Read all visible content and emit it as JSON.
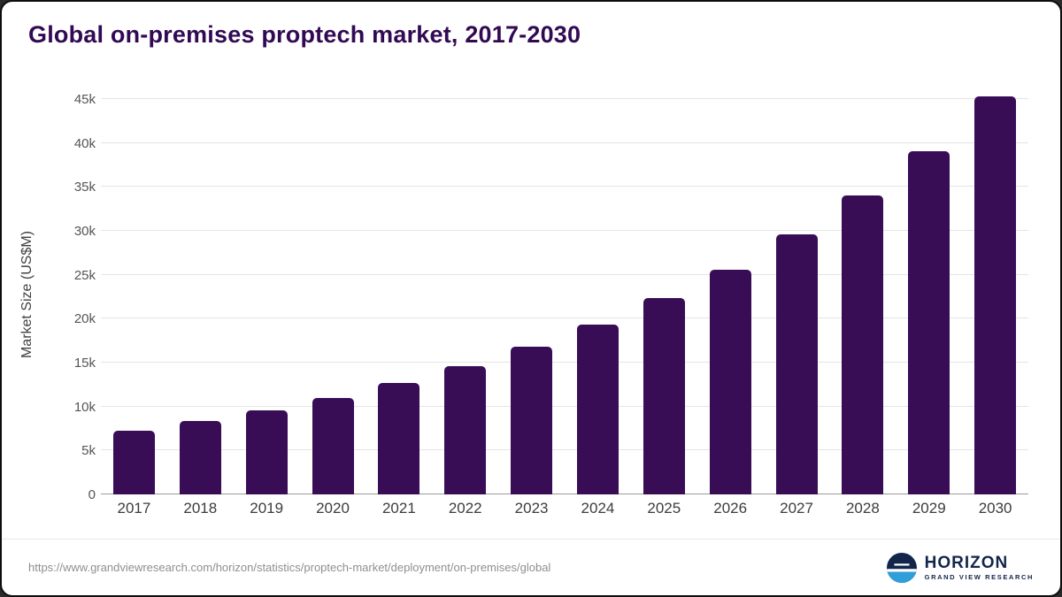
{
  "page": {
    "title": "Global on-premises proptech market, 2017-2030",
    "footer": {
      "source_url": "https://www.grandviewresearch.com/horizon/statistics/proptech-market/deployment/on-premises/global",
      "brand_name": "HORIZON",
      "brand_subtitle": "GRAND VIEW RESEARCH"
    }
  },
  "chart_data": {
    "type": "bar",
    "title": "Global on-premises proptech market, 2017-2030",
    "xlabel": "",
    "ylabel": "Market Size (US$M)",
    "categories": [
      "2017",
      "2018",
      "2019",
      "2020",
      "2021",
      "2022",
      "2023",
      "2024",
      "2025",
      "2026",
      "2027",
      "2028",
      "2029",
      "2030"
    ],
    "values": [
      7200,
      8400,
      9600,
      11000,
      12700,
      14600,
      16800,
      19300,
      22300,
      25600,
      29600,
      34000,
      39100,
      45300
    ],
    "unit": "US$M",
    "ylim": [
      0,
      46000
    ],
    "yticks": [
      {
        "value": 0,
        "label": "0"
      },
      {
        "value": 5000,
        "label": "5k"
      },
      {
        "value": 10000,
        "label": "10k"
      },
      {
        "value": 15000,
        "label": "15k"
      },
      {
        "value": 20000,
        "label": "20k"
      },
      {
        "value": 25000,
        "label": "25k"
      },
      {
        "value": 30000,
        "label": "30k"
      },
      {
        "value": 35000,
        "label": "35k"
      },
      {
        "value": 40000,
        "label": "40k"
      },
      {
        "value": 45000,
        "label": "45k"
      }
    ],
    "grid": true,
    "legend": false,
    "bar_color": "#380d56"
  }
}
